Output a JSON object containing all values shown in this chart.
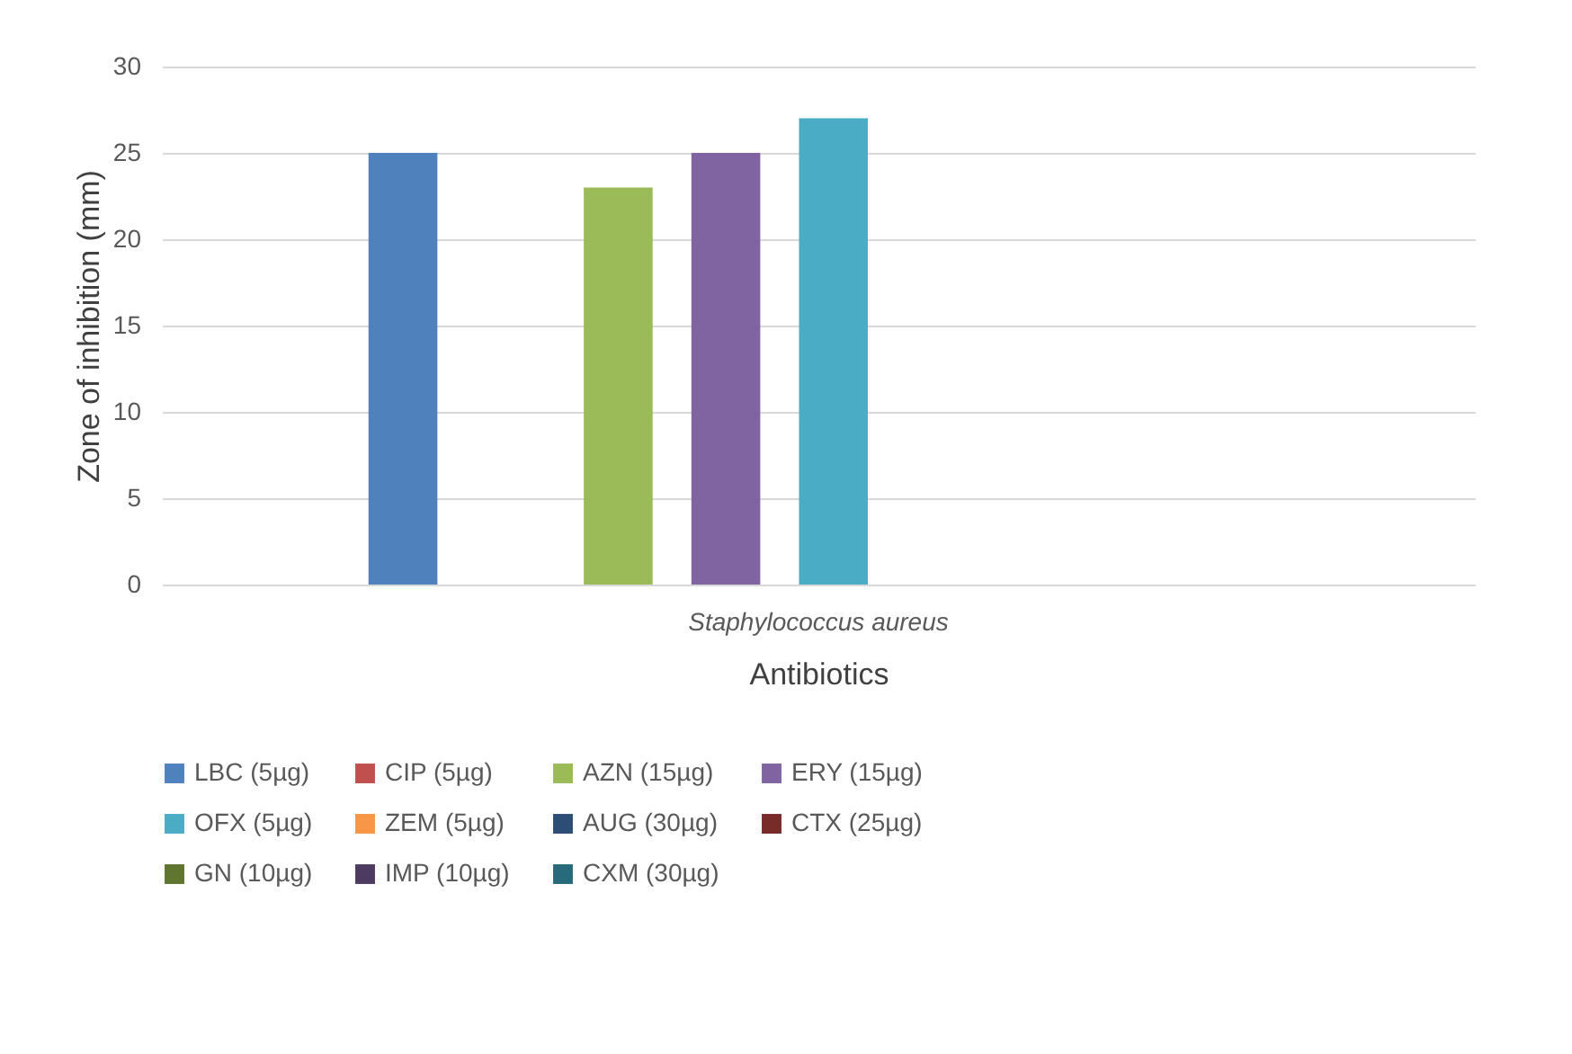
{
  "chart_data": {
    "type": "bar",
    "xlabel": "Antibiotics",
    "ylabel": "Zone of inhibition (mm)",
    "categories": [
      "Staphylococcus aureus"
    ],
    "series": [
      {
        "name": "LBC (5µg)",
        "color": "#4f81bd",
        "values": [
          25
        ]
      },
      {
        "name": "CIP (5µg)",
        "color": "#c0504d",
        "values": [
          0
        ]
      },
      {
        "name": "AZN (15µg)",
        "color": "#9bbb59",
        "values": [
          23
        ]
      },
      {
        "name": "ERY (15µg)",
        "color": "#8064a2",
        "values": [
          25
        ]
      },
      {
        "name": "OFX (5µg)",
        "color": "#4bacc6",
        "values": [
          27
        ]
      },
      {
        "name": "ZEM (5µg)",
        "color": "#f79646",
        "values": [
          0
        ]
      },
      {
        "name": "AUG (30µg)",
        "color": "#2c4d75",
        "values": [
          0
        ]
      },
      {
        "name": "CTX (25µg)",
        "color": "#772c2a",
        "values": [
          0
        ]
      },
      {
        "name": "GN (10µg)",
        "color": "#5f7530",
        "values": [
          0
        ]
      },
      {
        "name": "IMP (10µg)",
        "color": "#4d3b62",
        "values": [
          0
        ]
      },
      {
        "name": "CXM (30µg)",
        "color": "#276a7c",
        "values": [
          0
        ]
      }
    ],
    "ylim": [
      0,
      30
    ],
    "yticks": [
      0,
      5,
      10,
      15,
      20,
      25,
      30
    ],
    "grid": "y",
    "legend": "bottom"
  }
}
